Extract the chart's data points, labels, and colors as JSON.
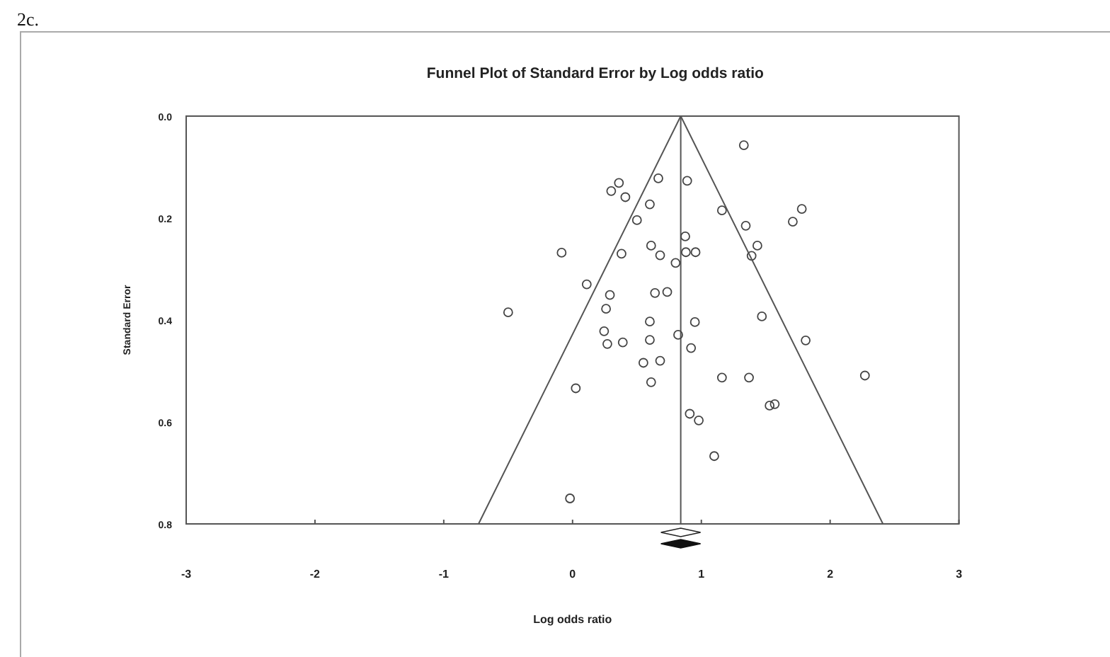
{
  "chart_data": {
    "type": "scatter",
    "title": "Funnel Plot of Standard Error by Log odds ratio",
    "xlabel": "Log odds ratio",
    "ylabel": "Standard Error",
    "annotations": [
      "2c."
    ],
    "xlim": [
      -3,
      3
    ],
    "xticks": [
      -3,
      -2,
      -1,
      0,
      1,
      2,
      3
    ],
    "ylim": [
      0.8,
      0
    ],
    "yticks": [
      {
        "value": 0,
        "label": "0.0"
      },
      {
        "value": 0.2,
        "label": "0.2"
      },
      {
        "value": 0.4,
        "label": "0.4"
      },
      {
        "value": 0.6,
        "label": "0.6"
      },
      {
        "value": 0.8,
        "label": "0.8"
      }
    ],
    "grid": false,
    "marker": "circle",
    "ref_lines": [
      {
        "axis": "x",
        "value": 0.84,
        "color": "#555555"
      }
    ],
    "series": [
      {
        "color": "#444444",
        "x": [
          0.36,
          0.3,
          0.666,
          0.89,
          0.41,
          0.6,
          1.16,
          0.5,
          0.875,
          -0.085,
          0.38,
          0.61,
          0.68,
          0.88,
          0.955,
          0.8,
          0.11,
          0.29,
          0.64,
          0.735,
          0.26,
          -0.5,
          0.6,
          0.95,
          0.245,
          0.82,
          0.27,
          0.39,
          0.6,
          0.92,
          0.55,
          0.68,
          1.16,
          0.61,
          0.025,
          0.91,
          0.98,
          1.1,
          -0.02,
          1.33,
          1.78,
          1.71,
          1.345,
          1.435,
          1.39,
          1.47,
          1.81,
          1.37,
          2.27,
          1.53,
          1.57
        ],
        "values": [
          0.131,
          0.147,
          0.122,
          0.127,
          0.159,
          0.173,
          0.185,
          0.204,
          0.236,
          0.268,
          0.27,
          0.254,
          0.273,
          0.267,
          0.267,
          0.288,
          0.33,
          0.351,
          0.347,
          0.345,
          0.378,
          0.385,
          0.403,
          0.404,
          0.422,
          0.429,
          0.447,
          0.444,
          0.439,
          0.455,
          0.484,
          0.48,
          0.513,
          0.522,
          0.534,
          0.584,
          0.597,
          0.667,
          0.75,
          0.057,
          0.182,
          0.207,
          0.215,
          0.254,
          0.274,
          0.393,
          0.44,
          0.513,
          0.509,
          0.568,
          0.565
        ]
      },
      {
        "type": "line",
        "color": "#555555",
        "marker": "none",
        "line_style": "solid",
        "x": [
          -0.73,
          0.84,
          2.41
        ],
        "values": [
          0.8,
          0,
          0.8
        ]
      }
    ]
  }
}
